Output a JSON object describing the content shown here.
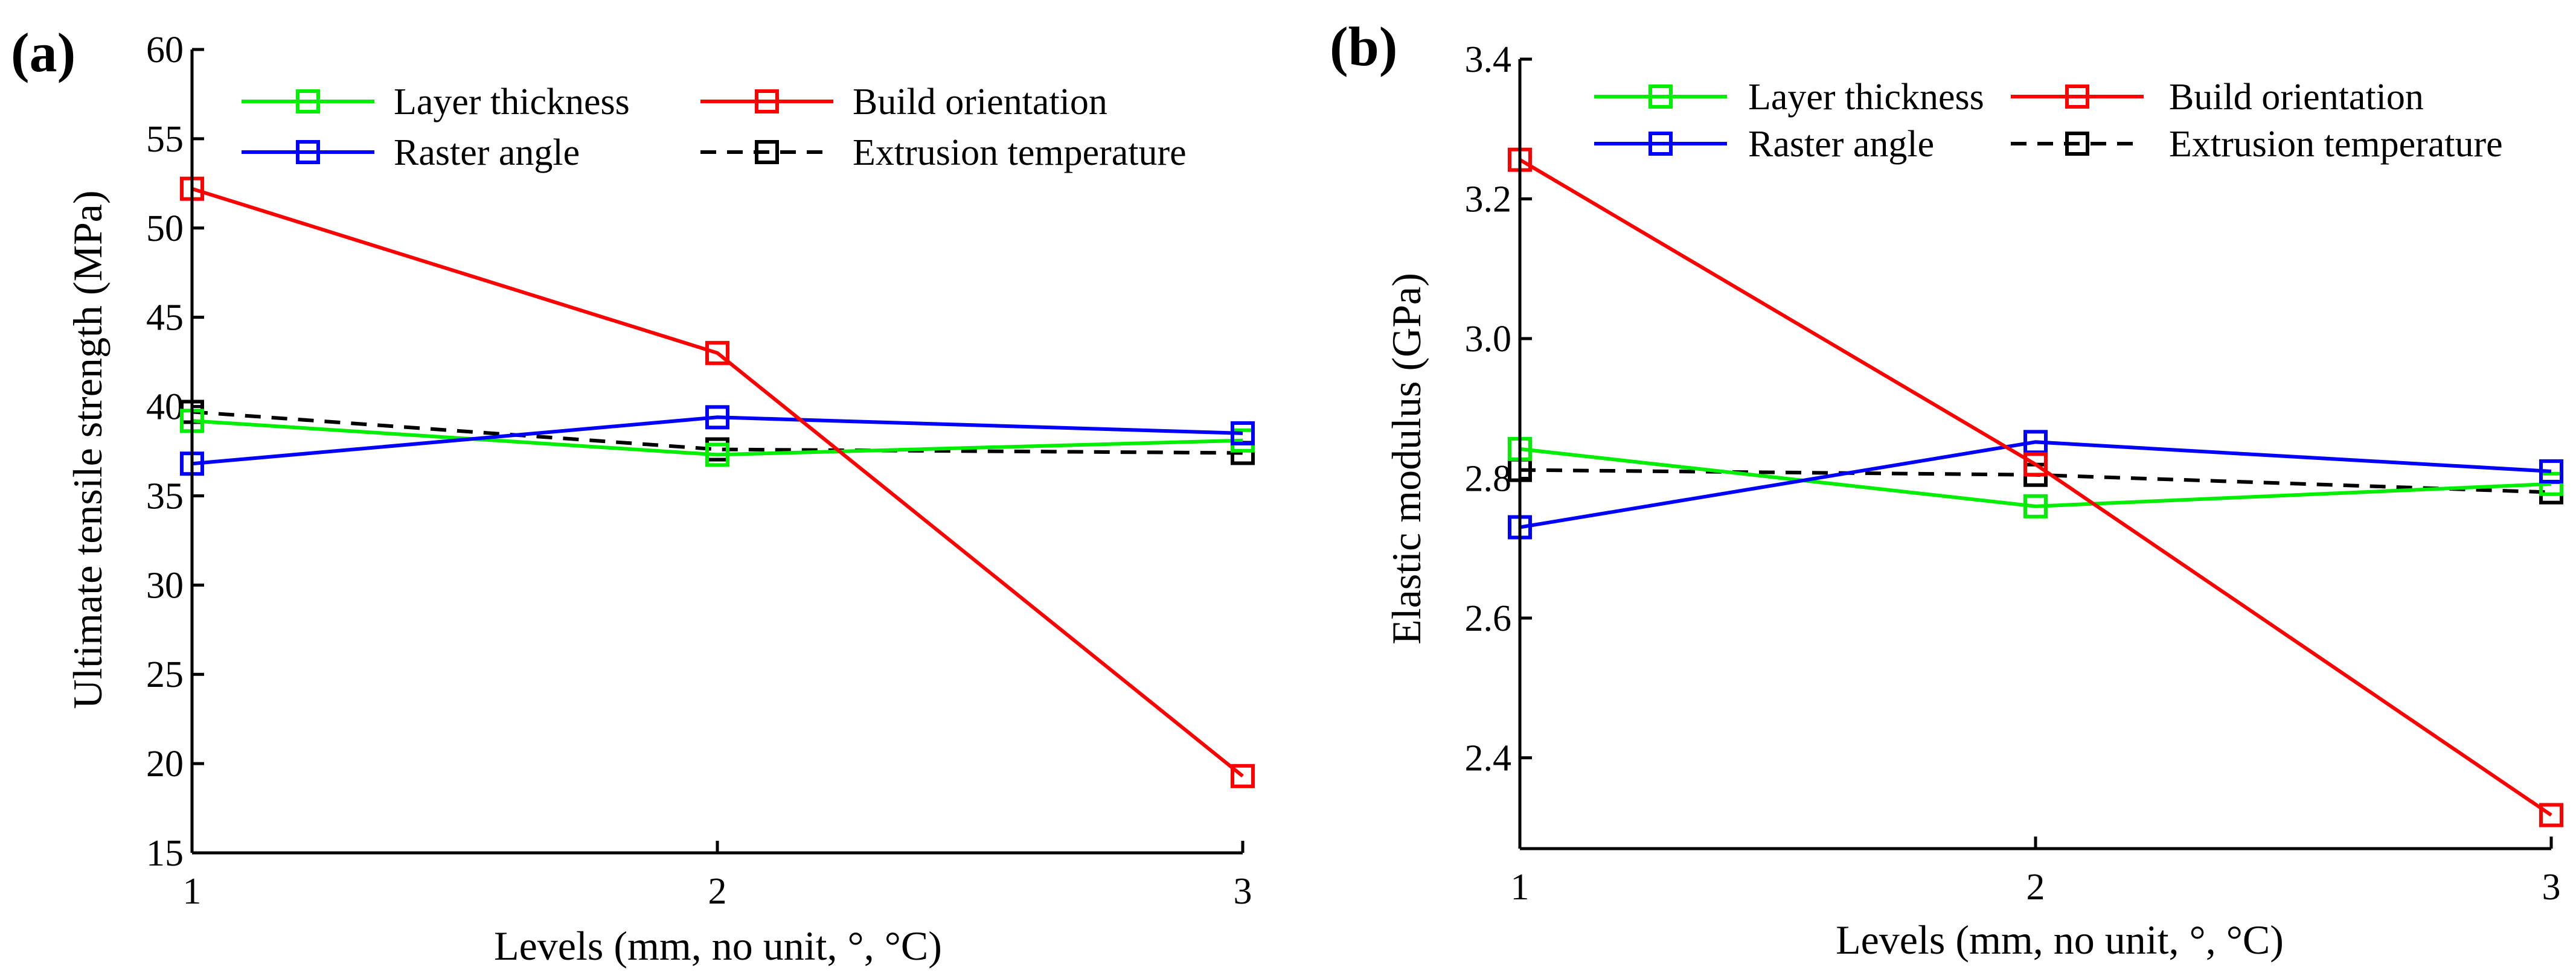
{
  "colors": {
    "layer_thickness": "#00ee00",
    "build_orientation": "#ff0000",
    "raster_angle": "#0000ff",
    "extrusion_temperature": "#000000"
  },
  "chart_data": [
    {
      "panel": "(a)",
      "type": "line",
      "xlabel": "Levels (mm, no unit, °, °C)",
      "ylabel": "Ultimate tensile strength (MPa)",
      "x": [
        1,
        2,
        3
      ],
      "xticks": [
        "1",
        "2",
        "3"
      ],
      "xlim": [
        1,
        3
      ],
      "ylim": [
        15,
        60
      ],
      "yticks": [
        "15",
        "20",
        "25",
        "30",
        "35",
        "40",
        "45",
        "50",
        "55",
        "60"
      ],
      "grid": false,
      "legend_position": "top",
      "series": [
        {
          "key": "layer_thickness",
          "name": "Layer thickness",
          "values": [
            39.2,
            37.3,
            38.1
          ],
          "color": "#00ee00",
          "dash": false
        },
        {
          "key": "build_orientation",
          "name": "Build orientation",
          "values": [
            52.2,
            43.0,
            19.3
          ],
          "color": "#ff0000",
          "dash": false
        },
        {
          "key": "raster_angle",
          "name": "Raster angle",
          "values": [
            36.8,
            39.4,
            38.5
          ],
          "color": "#0000ff",
          "dash": false
        },
        {
          "key": "extrusion_temperature",
          "name": "Extrusion temperature",
          "values": [
            39.7,
            37.6,
            37.4
          ],
          "color": "#000000",
          "dash": true
        }
      ]
    },
    {
      "panel": "(b)",
      "type": "line",
      "xlabel": "Levels (mm, no unit, °, °C)",
      "ylabel": "Elastic modulus (GPa)",
      "x": [
        1,
        2,
        3
      ],
      "xticks": [
        "1",
        "2",
        "3"
      ],
      "xlim": [
        1,
        3
      ],
      "ylim": [
        2.27,
        3.4
      ],
      "yticks": [
        "2.4",
        "2.6",
        "2.8",
        "3.0",
        "3.2",
        "3.4"
      ],
      "grid": false,
      "legend_position": "top",
      "series": [
        {
          "key": "layer_thickness",
          "name": "Layer thickness",
          "values": [
            2.842,
            2.76,
            2.792
          ],
          "color": "#00ee00",
          "dash": false
        },
        {
          "key": "build_orientation",
          "name": "Build orientation",
          "values": [
            3.256,
            2.82,
            2.318
          ],
          "color": "#ff0000",
          "dash": false
        },
        {
          "key": "raster_angle",
          "name": "Raster angle",
          "values": [
            2.73,
            2.852,
            2.81
          ],
          "color": "#0000ff",
          "dash": false
        },
        {
          "key": "extrusion_temperature",
          "name": "Extrusion temperature",
          "values": [
            2.812,
            2.805,
            2.78
          ],
          "color": "#000000",
          "dash": true
        }
      ]
    }
  ]
}
